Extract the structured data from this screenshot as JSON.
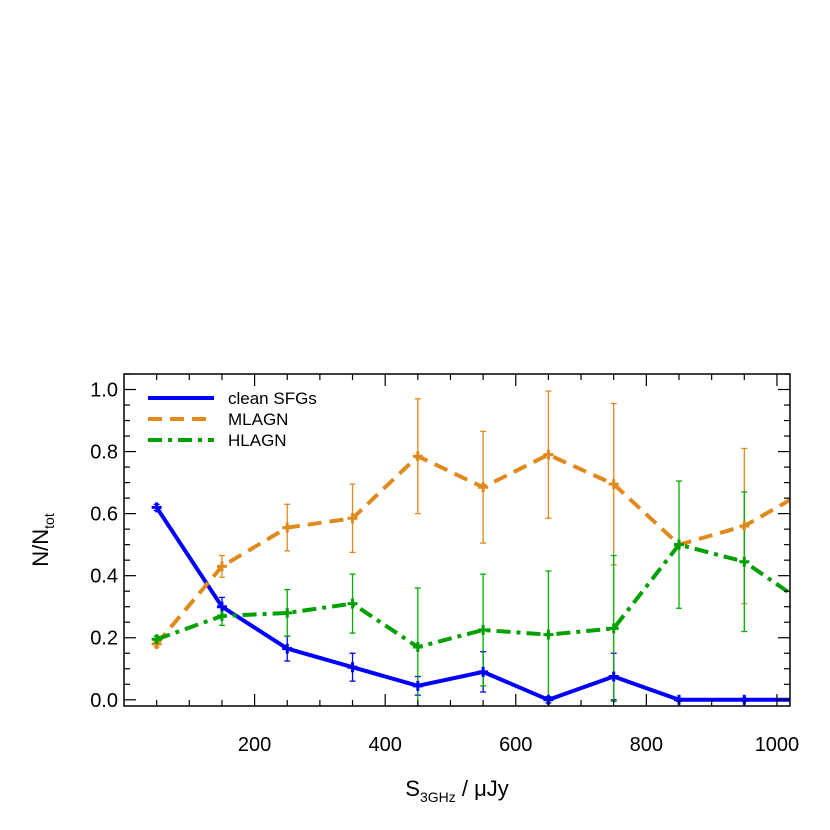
{
  "chart_data": {
    "type": "line",
    "xlabel": {
      "main": "S",
      "sub": "3GHz",
      "rest": " / μJy"
    },
    "ylabel": {
      "main": "N/N",
      "sub": "tot"
    },
    "xlim": [
      0,
      1020
    ],
    "ylim": [
      -0.02,
      1.05
    ],
    "xticks": [
      200,
      400,
      600,
      800,
      1000
    ],
    "xtick_labels": [
      "200",
      "400",
      "600",
      "800",
      "1000"
    ],
    "xminor_step": 50,
    "yticks": [
      0.0,
      0.2,
      0.4,
      0.6,
      0.8,
      1.0
    ],
    "ytick_labels": [
      "0.0",
      "0.2",
      "0.4",
      "0.6",
      "0.8",
      "1.0"
    ],
    "yminor_step": 0.05,
    "legend_position": "top-left",
    "series": [
      {
        "name": "clean SFGs",
        "color": "#0000ff",
        "style": "solid",
        "x": [
          50,
          150,
          250,
          350,
          450,
          550,
          650,
          750,
          850,
          950,
          1050
        ],
        "y": [
          0.62,
          0.3,
          0.165,
          0.105,
          0.045,
          0.09,
          0.0,
          0.075,
          0.0,
          0.0,
          0.0
        ],
        "err": [
          0.01,
          0.03,
          0.04,
          0.045,
          0.03,
          0.065,
          0.01,
          0.075,
          0.005,
          0.005,
          0.005
        ],
        "err_color": "#0000ff"
      },
      {
        "name": "MLAGN",
        "color": "#e08a1e",
        "style": "dashed",
        "x": [
          50,
          150,
          250,
          350,
          450,
          550,
          650,
          750,
          850,
          950,
          1050
        ],
        "y": [
          0.18,
          0.43,
          0.555,
          0.585,
          0.785,
          0.685,
          0.79,
          0.695,
          0.5,
          0.56,
          0.68
        ],
        "err": [
          0.01,
          0.035,
          0.075,
          0.11,
          0.185,
          0.18,
          0.205,
          0.26,
          0.0,
          0.25,
          0.0
        ],
        "err_color": "#e08a1e"
      },
      {
        "name": "HLAGN",
        "color": "#00a000",
        "style": "dashdot",
        "x": [
          50,
          150,
          250,
          350,
          450,
          550,
          650,
          750,
          850,
          950,
          1050
        ],
        "y": [
          0.195,
          0.27,
          0.28,
          0.31,
          0.17,
          0.225,
          0.21,
          0.23,
          0.5,
          0.445,
          0.3
        ],
        "err": [
          0.01,
          0.03,
          0.075,
          0.095,
          0.19,
          0.18,
          0.205,
          0.235,
          0.205,
          0.225,
          0.0
        ],
        "err_color": "#00b000"
      }
    ]
  }
}
